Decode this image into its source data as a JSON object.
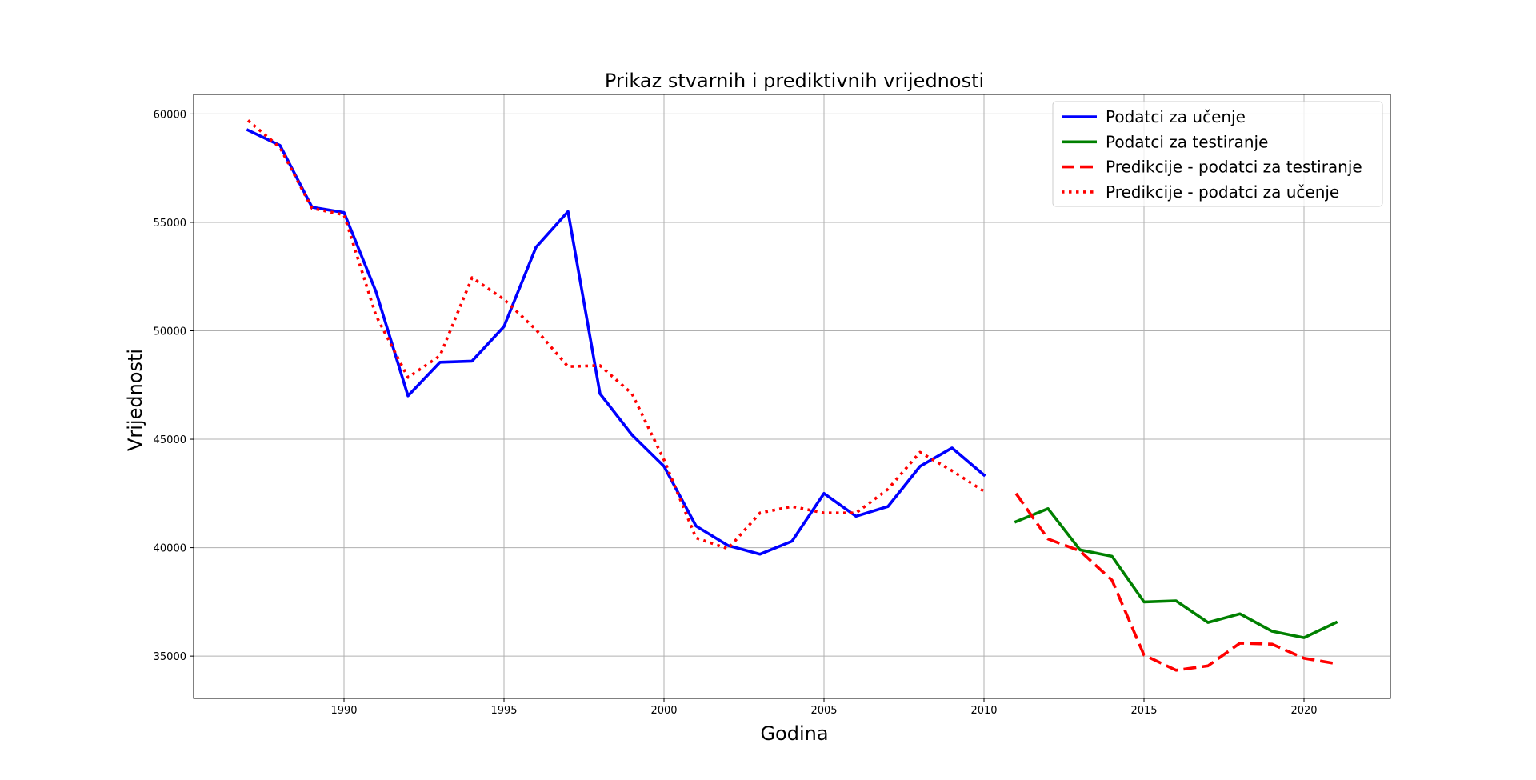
{
  "chart_data": {
    "type": "line",
    "title": "Prikaz stvarnih i prediktivnih vrijednosti",
    "xlabel": "Godina",
    "ylabel": "Vrijednosti",
    "xlim": [
      1985.3,
      2022.7
    ],
    "ylim": [
      33050,
      60900
    ],
    "xticks": [
      1990,
      1995,
      2000,
      2005,
      2010,
      2015,
      2020
    ],
    "yticks": [
      35000,
      40000,
      45000,
      50000,
      55000,
      60000
    ],
    "grid": true,
    "legend_position": "top-right",
    "series": [
      {
        "name": "Podatci za učenje",
        "color": "#0000ff",
        "style": "solid",
        "x": [
          1987,
          1988,
          1989,
          1990,
          1991,
          1992,
          1993,
          1994,
          1995,
          1996,
          1997,
          1998,
          1999,
          2000,
          2001,
          2002,
          2003,
          2004,
          2005,
          2006,
          2007,
          2008,
          2009,
          2010
        ],
        "y": [
          59250,
          58550,
          55700,
          55450,
          51800,
          47000,
          48550,
          48600,
          50200,
          53850,
          55500,
          47100,
          45200,
          43750,
          41000,
          40100,
          39700,
          40300,
          42500,
          41450,
          41900,
          43750,
          44600,
          43350
        ]
      },
      {
        "name": "Podatci za testiranje",
        "color": "#008000",
        "style": "solid",
        "x": [
          2011,
          2012,
          2013,
          2014,
          2015,
          2016,
          2017,
          2018,
          2019,
          2020,
          2021
        ],
        "y": [
          41200,
          41800,
          39900,
          39600,
          37500,
          37550,
          36550,
          36950,
          36150,
          35850,
          36550
        ]
      },
      {
        "name": "Predikcije - podatci za testiranje",
        "color": "#ff0000",
        "style": "dashed",
        "x": [
          2011,
          2012,
          2013,
          2014,
          2015,
          2016,
          2017,
          2018,
          2019,
          2020,
          2021
        ],
        "y": [
          42500,
          40400,
          39850,
          38500,
          35050,
          34350,
          34550,
          35600,
          35550,
          34900,
          34650
        ]
      },
      {
        "name": "Predikcije - podatci za učenje",
        "color": "#ff0000",
        "style": "dotted",
        "x": [
          1987,
          1988,
          1989,
          1990,
          1991,
          1992,
          1993,
          1994,
          1995,
          1996,
          1997,
          1998,
          1999,
          2000,
          2001,
          2002,
          2003,
          2004,
          2005,
          2006,
          2007,
          2008,
          2009,
          2010
        ],
        "y": [
          59700,
          58450,
          55650,
          55350,
          50700,
          47850,
          48850,
          52450,
          51450,
          50050,
          48350,
          48400,
          47100,
          44050,
          40450,
          39950,
          41600,
          41900,
          41600,
          41600,
          42700,
          44400,
          43550,
          42600
        ]
      }
    ]
  }
}
